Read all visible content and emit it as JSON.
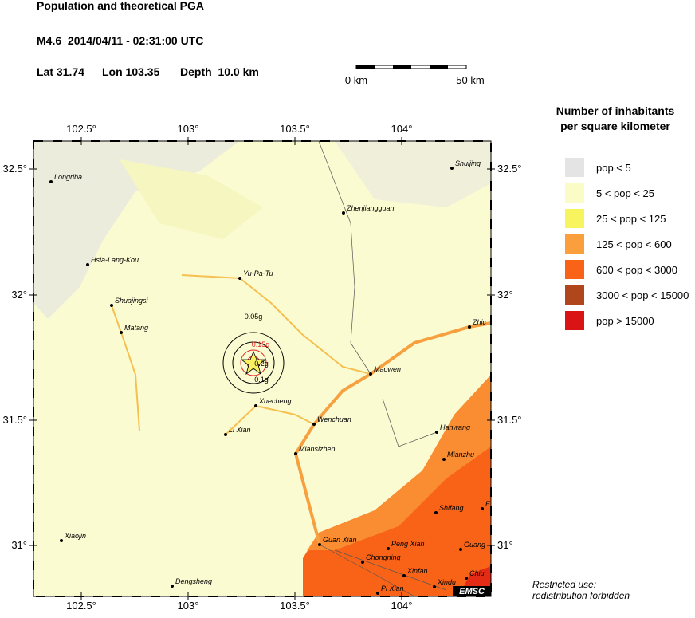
{
  "header": {
    "title": "Population and theoretical PGA",
    "event": "M4.6  2014/04/11 - 02:31:00 UTC",
    "lat": "Lat 31.74",
    "lon": "Lon 103.35",
    "depth": "Depth  10.0 km"
  },
  "scale_bar": {
    "start": "0 km",
    "end": "50 km"
  },
  "map": {
    "lon_ticks": [
      "102.5°",
      "103°",
      "103.5°",
      "104°"
    ],
    "lat_ticks": [
      "32.5°",
      "32°",
      "31.5°",
      "31°"
    ],
    "cities": [
      "Longriba",
      "Shuijing",
      "Zhenjiangguan",
      "Hsia-Lang-Kou",
      "Yu-Pa-Tu",
      "Shuajingsi",
      "Matang",
      "Zhic",
      "Maowen",
      "Xuecheng",
      "Wenchuan",
      "Hanwang",
      "Li Xian",
      "Miansizhen",
      "Mianzhu",
      "Shifang",
      "E",
      "Xiaojin",
      "Guan Xian",
      "Peng Xian",
      "Guang",
      "Chongning",
      "Xinfan",
      "Chiu",
      "Dengsheng",
      "Pi Xian",
      "Xindu"
    ],
    "pga_labels": [
      "0.05g",
      "0.1g",
      "0.15g",
      "0.2g"
    ],
    "badge": "EMSC"
  },
  "legend": {
    "title": [
      "Number of inhabitants",
      "per square kilometer"
    ],
    "items": [
      {
        "label": "pop < 5",
        "color": "#e4e4e4"
      },
      {
        "label": "5 < pop < 25",
        "color": "#fbfbc6"
      },
      {
        "label": "25 < pop < 125",
        "color": "#f8f460"
      },
      {
        "label": "125 < pop < 600",
        "color": "#fb9e3c"
      },
      {
        "label": "600 < pop < 3000",
        "color": "#f96318"
      },
      {
        "label": "3000 < pop < 15000",
        "color": "#b0461c"
      },
      {
        "label": "pop > 15000",
        "color": "#da1414"
      }
    ]
  },
  "note": [
    "Restricted use:",
    "redistribution forbidden"
  ]
}
